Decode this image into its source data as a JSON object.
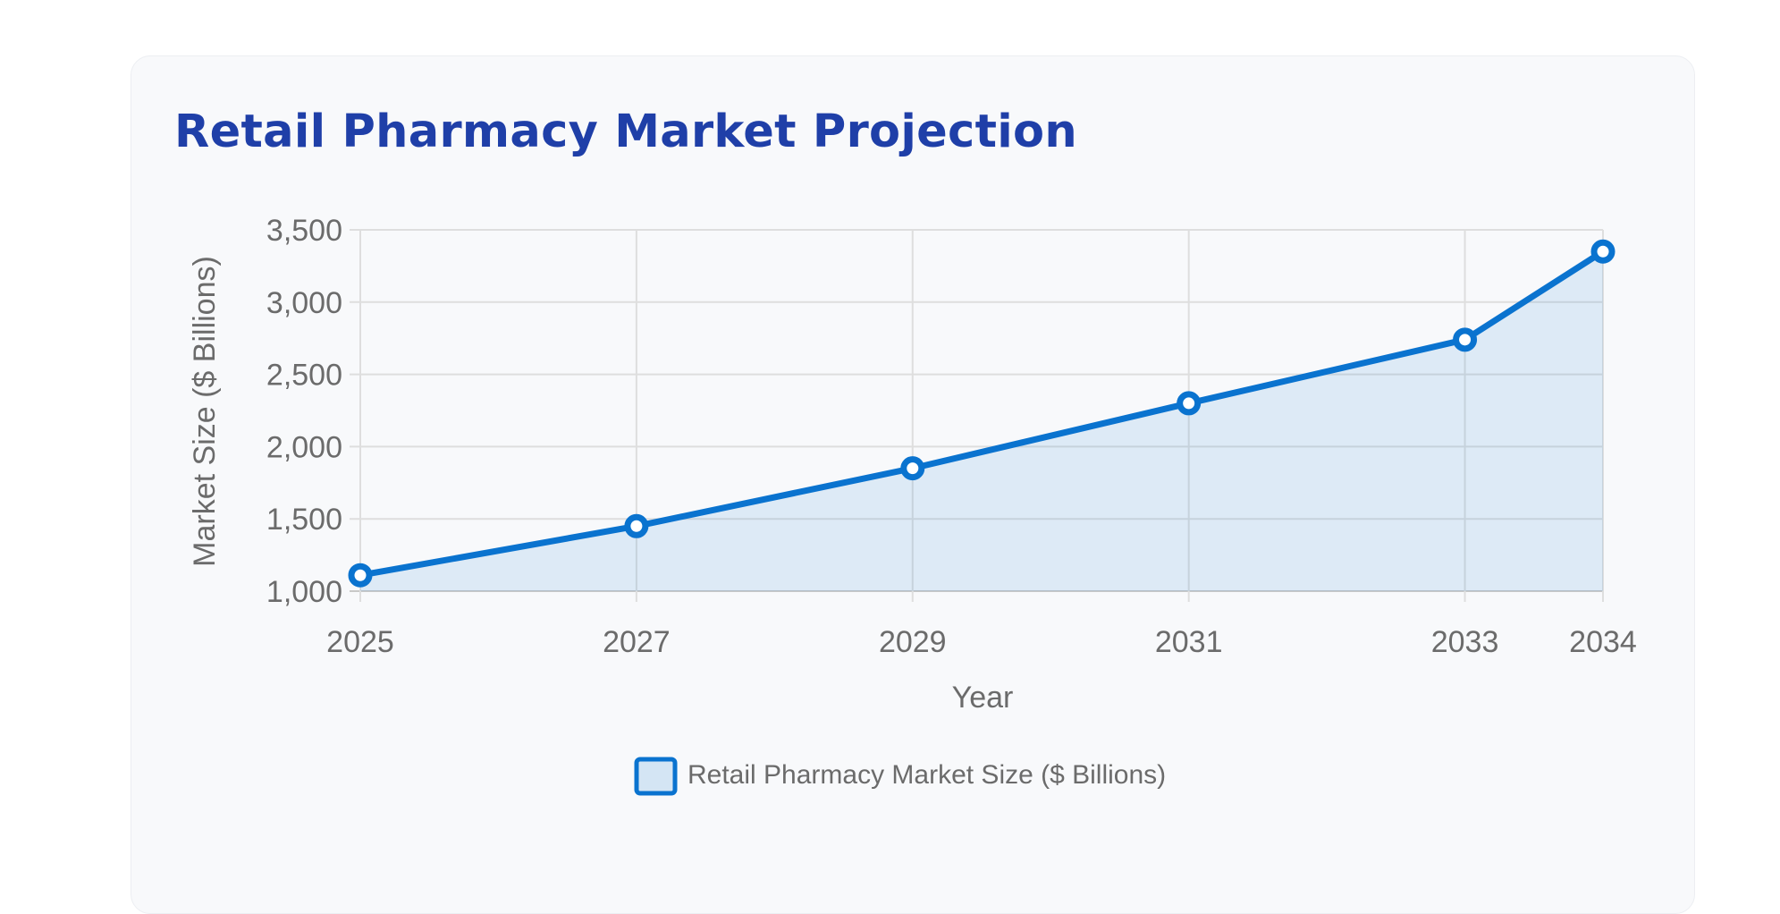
{
  "title": "Retail Pharmacy Market Projection",
  "chart_data": {
    "type": "line",
    "title": "Retail Pharmacy Market Projection",
    "x": [
      2025,
      2027,
      2029,
      2031,
      2033,
      2034
    ],
    "x_tick_labels": [
      "2025",
      "2027",
      "2029",
      "2031",
      "2033",
      "2034"
    ],
    "series": [
      {
        "name": "Retail Pharmacy Market Size ($ Billions)",
        "values": [
          1110,
          1450,
          1850,
          2300,
          2740,
          3350
        ],
        "color": "#0a73cf",
        "fill": "rgba(10,115,207,0.11)"
      }
    ],
    "xlabel": "Year",
    "ylabel": "Market Size ($ Billions)",
    "ylim": [
      1000,
      3500
    ],
    "y_ticks": [
      1000,
      1500,
      2000,
      2500,
      3000,
      3500
    ],
    "y_tick_labels": [
      "1,000",
      "1,500",
      "2,000",
      "2,500",
      "3,000",
      "3,500"
    ],
    "grid": true,
    "legend": "bottom",
    "filled": true
  }
}
